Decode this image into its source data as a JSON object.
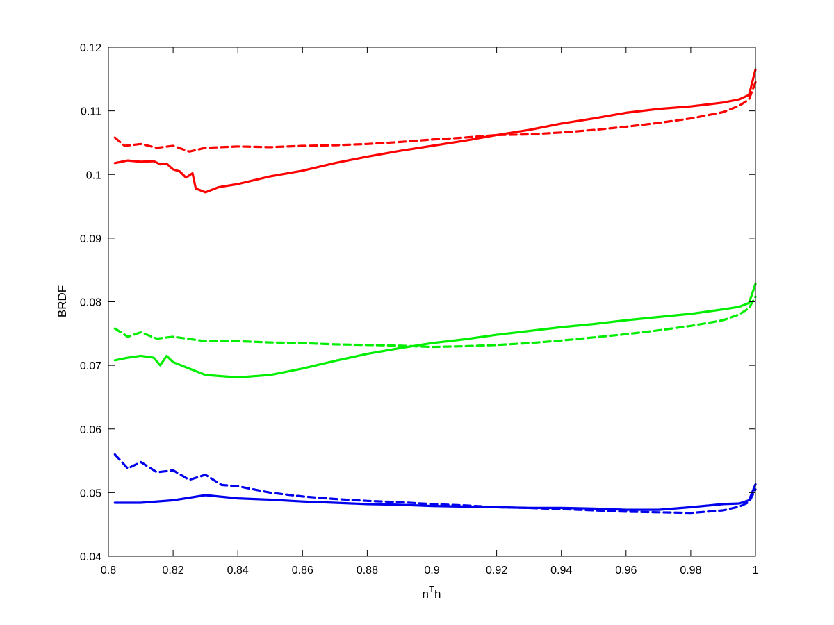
{
  "chart_data": {
    "type": "line",
    "title": "",
    "xlabel": "n",
    "xlabel_sup": "T",
    "xlabel_suffix": "h",
    "ylabel": "BRDF",
    "xlim": [
      0.8,
      1.0
    ],
    "ylim": [
      0.04,
      0.12
    ],
    "grid": false,
    "x_ticks": [
      0.8,
      0.82,
      0.84,
      0.86,
      0.88,
      0.9,
      0.92,
      0.94,
      0.96,
      0.98,
      1.0
    ],
    "x_tick_labels": [
      "0.8",
      "0.82",
      "0.84",
      "0.86",
      "0.88",
      "0.9",
      "0.92",
      "0.94",
      "0.96",
      "0.98",
      "1"
    ],
    "y_ticks": [
      0.04,
      0.05,
      0.06,
      0.07,
      0.08,
      0.09,
      0.1,
      0.11,
      0.12
    ],
    "y_tick_labels": [
      "0.04",
      "0.05",
      "0.06",
      "0.07",
      "0.08",
      "0.09",
      "0.1",
      "0.11",
      "0.12"
    ],
    "series": [
      {
        "color": "#ff0000",
        "dash": "solid",
        "x": [
          0.802,
          0.806,
          0.81,
          0.814,
          0.816,
          0.818,
          0.82,
          0.822,
          0.824,
          0.826,
          0.827,
          0.83,
          0.834,
          0.84,
          0.85,
          0.86,
          0.87,
          0.88,
          0.89,
          0.9,
          0.91,
          0.92,
          0.93,
          0.94,
          0.95,
          0.96,
          0.97,
          0.98,
          0.99,
          0.995,
          0.998,
          1.0
        ],
        "y": [
          0.1018,
          0.1022,
          0.102,
          0.1021,
          0.1016,
          0.1017,
          0.1008,
          0.1005,
          0.0995,
          0.1002,
          0.0978,
          0.0972,
          0.098,
          0.0985,
          0.0997,
          0.1006,
          0.1018,
          0.1028,
          0.1037,
          0.1045,
          0.1053,
          0.1062,
          0.107,
          0.108,
          0.1088,
          0.1097,
          0.1103,
          0.1107,
          0.1113,
          0.1118,
          0.1125,
          0.1165
        ]
      },
      {
        "color": "#ff0000",
        "dash": "dashed",
        "x": [
          0.802,
          0.805,
          0.81,
          0.815,
          0.82,
          0.825,
          0.83,
          0.84,
          0.85,
          0.86,
          0.87,
          0.88,
          0.89,
          0.9,
          0.91,
          0.92,
          0.93,
          0.94,
          0.95,
          0.96,
          0.97,
          0.98,
          0.99,
          0.995,
          0.998,
          1.0
        ],
        "y": [
          0.1058,
          0.1045,
          0.1048,
          0.1042,
          0.1045,
          0.1036,
          0.1042,
          0.1044,
          0.1043,
          0.1045,
          0.1046,
          0.1048,
          0.1051,
          0.1055,
          0.1058,
          0.1062,
          0.1063,
          0.1066,
          0.107,
          0.1075,
          0.1081,
          0.1088,
          0.1098,
          0.1108,
          0.1118,
          0.1145
        ]
      },
      {
        "color": "#00ee00",
        "dash": "solid",
        "x": [
          0.802,
          0.806,
          0.81,
          0.814,
          0.816,
          0.818,
          0.82,
          0.825,
          0.83,
          0.84,
          0.85,
          0.86,
          0.87,
          0.88,
          0.89,
          0.9,
          0.91,
          0.92,
          0.93,
          0.94,
          0.95,
          0.96,
          0.97,
          0.98,
          0.99,
          0.995,
          0.998,
          1.0
        ],
        "y": [
          0.0708,
          0.0712,
          0.0715,
          0.0712,
          0.07,
          0.0715,
          0.0705,
          0.0695,
          0.0685,
          0.0681,
          0.0685,
          0.0695,
          0.0707,
          0.0718,
          0.0727,
          0.0735,
          0.0741,
          0.0748,
          0.0754,
          0.076,
          0.0765,
          0.0771,
          0.0776,
          0.0781,
          0.0788,
          0.0792,
          0.0798,
          0.0828
        ]
      },
      {
        "color": "#00ee00",
        "dash": "dashed",
        "x": [
          0.802,
          0.806,
          0.81,
          0.815,
          0.82,
          0.83,
          0.84,
          0.85,
          0.86,
          0.87,
          0.88,
          0.89,
          0.9,
          0.91,
          0.92,
          0.93,
          0.94,
          0.95,
          0.96,
          0.97,
          0.98,
          0.99,
          0.995,
          0.998,
          1.0
        ],
        "y": [
          0.0758,
          0.0745,
          0.0752,
          0.0742,
          0.0745,
          0.0738,
          0.0738,
          0.0736,
          0.0735,
          0.0733,
          0.0732,
          0.0731,
          0.0729,
          0.073,
          0.0732,
          0.0735,
          0.0739,
          0.0744,
          0.0749,
          0.0755,
          0.0762,
          0.0771,
          0.078,
          0.079,
          0.0808
        ]
      },
      {
        "color": "#0000ee",
        "dash": "solid",
        "x": [
          0.802,
          0.81,
          0.82,
          0.83,
          0.84,
          0.85,
          0.86,
          0.87,
          0.88,
          0.89,
          0.9,
          0.91,
          0.92,
          0.93,
          0.94,
          0.95,
          0.96,
          0.97,
          0.98,
          0.99,
          0.995,
          0.998,
          1.0
        ],
        "y": [
          0.0484,
          0.0484,
          0.0488,
          0.0496,
          0.0491,
          0.0489,
          0.0486,
          0.0484,
          0.0482,
          0.0481,
          0.0479,
          0.0478,
          0.0477,
          0.0476,
          0.0476,
          0.0475,
          0.0473,
          0.0473,
          0.0477,
          0.0482,
          0.0483,
          0.0488,
          0.0513
        ]
      },
      {
        "color": "#0000ee",
        "dash": "dashed",
        "x": [
          0.802,
          0.806,
          0.81,
          0.815,
          0.82,
          0.825,
          0.83,
          0.835,
          0.84,
          0.85,
          0.86,
          0.87,
          0.88,
          0.89,
          0.9,
          0.91,
          0.92,
          0.93,
          0.94,
          0.95,
          0.96,
          0.97,
          0.98,
          0.99,
          0.995,
          0.998,
          1.0
        ],
        "y": [
          0.056,
          0.0538,
          0.0548,
          0.0532,
          0.0535,
          0.052,
          0.0528,
          0.0512,
          0.051,
          0.05,
          0.0494,
          0.049,
          0.0487,
          0.0485,
          0.0482,
          0.048,
          0.0477,
          0.0476,
          0.0474,
          0.0472,
          0.047,
          0.0469,
          0.0468,
          0.0472,
          0.0478,
          0.0485,
          0.0505
        ]
      }
    ]
  }
}
